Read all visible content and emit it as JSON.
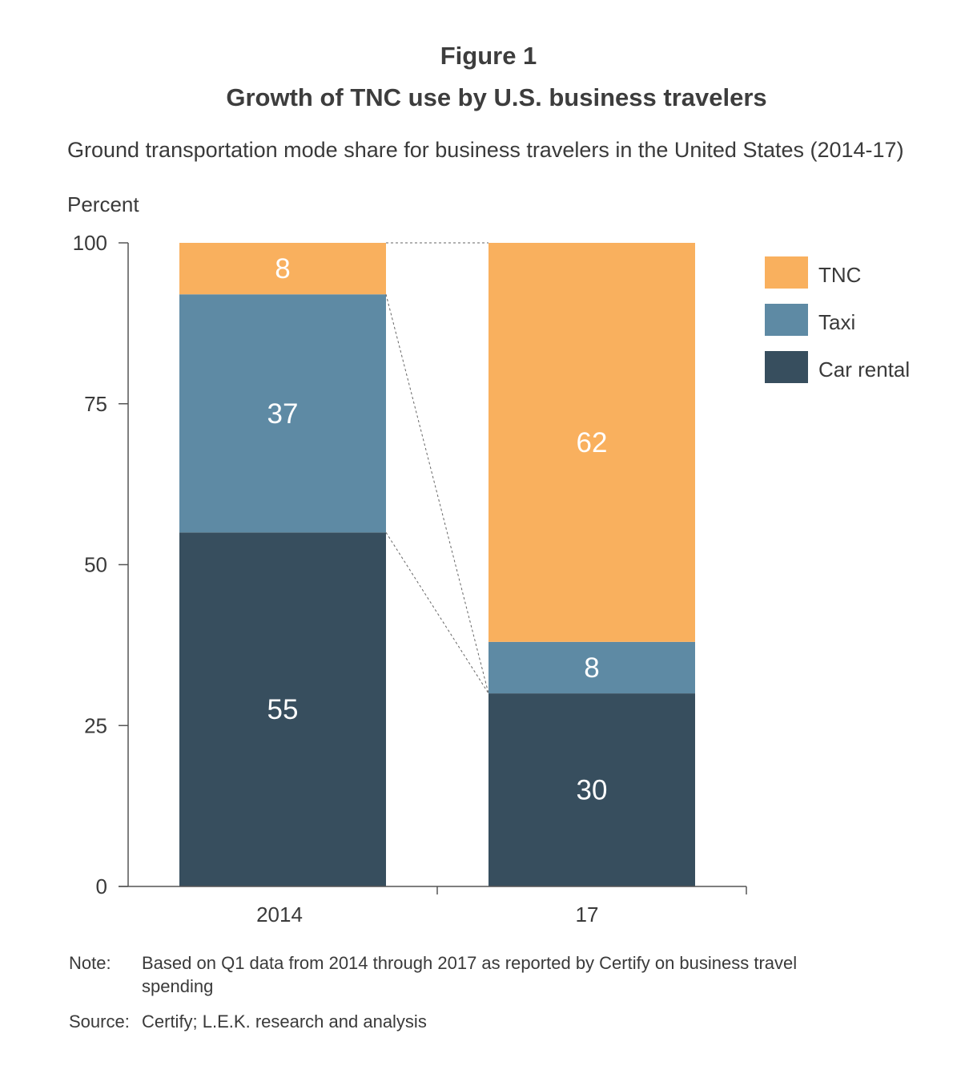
{
  "figure_label": "Figure 1",
  "figure_title": "Growth of TNC use by U.S. business travelers",
  "colors": {
    "tnc": "#f9b05e",
    "taxi": "#5e8aa4",
    "car_rental": "#374e5e",
    "axis": "#555555",
    "connector": "#666666"
  },
  "chart_data": {
    "type": "bar",
    "stacked": true,
    "title": "Ground transportation mode share for business travelers in the United States (2014-17)",
    "ylabel": "Percent",
    "xlabel": "",
    "categories": [
      "2014",
      "17"
    ],
    "ylim": [
      0,
      100
    ],
    "yticks": [
      0,
      25,
      50,
      75,
      100
    ],
    "series": [
      {
        "name": "Car rental",
        "values": [
          55,
          30
        ],
        "color": "#374e5e"
      },
      {
        "name": "Taxi",
        "values": [
          37,
          8
        ],
        "color": "#5e8aa4"
      },
      {
        "name": "TNC",
        "values": [
          8,
          62
        ],
        "color": "#f9b05e"
      }
    ],
    "legend_order": [
      "TNC",
      "Taxi",
      "Car rental"
    ],
    "legend_position": "right",
    "grid": false,
    "connector_lines": true
  },
  "notes": {
    "note_label": "Note:",
    "note_text": "Based on Q1 data from 2014 through 2017 as reported by Certify on business travel spending",
    "source_label": "Source:",
    "source_text": "Certify; L.E.K. research and analysis"
  }
}
